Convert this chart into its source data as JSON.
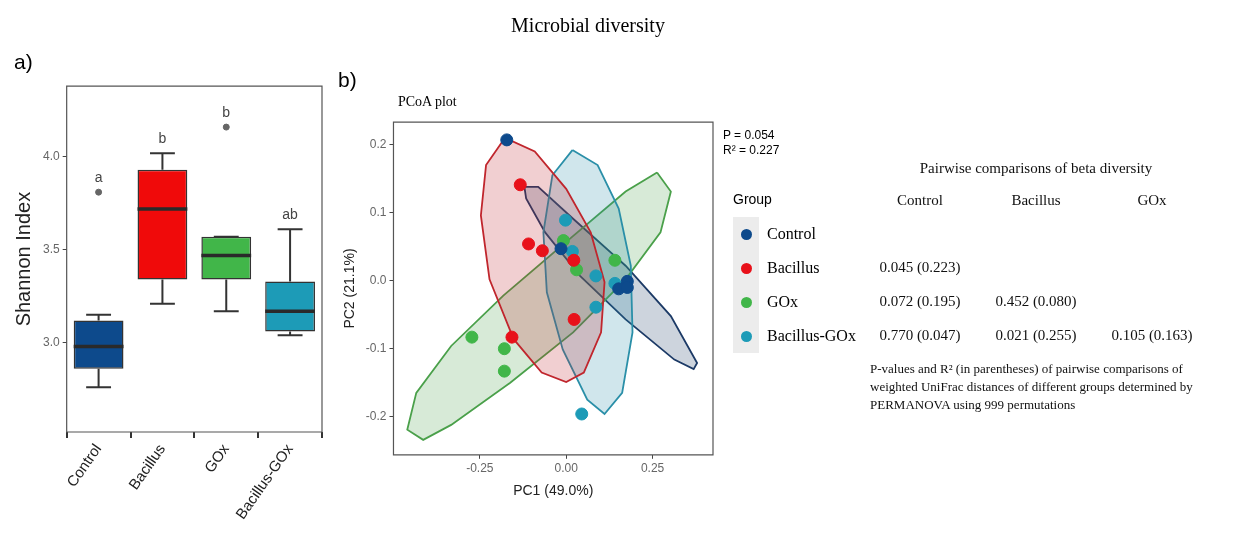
{
  "chart_data": [
    {
      "type": "box",
      "ylabel": "Shannon Index",
      "categories": [
        "Control",
        "Bacillus",
        "GOx",
        "Bacillus-GOx"
      ],
      "colors": [
        "#0d4a8c",
        "#f00a0a",
        "#41b649",
        "#1d9bb7"
      ],
      "boxes": [
        {
          "low": 2.76,
          "q1": 2.86,
          "median": 2.98,
          "q3": 3.12,
          "high": 3.15,
          "outliers": [
            3.81
          ]
        },
        {
          "low": 3.21,
          "q1": 3.34,
          "median": 3.72,
          "q3": 3.93,
          "high": 4.02
        },
        {
          "low": 3.17,
          "q1": 3.34,
          "median": 3.47,
          "q3": 3.57,
          "high": 3.57,
          "outliers": [
            4.16
          ]
        },
        {
          "low": 3.04,
          "q1": 3.06,
          "median": 3.17,
          "q3": 3.33,
          "high": 3.61
        }
      ],
      "ylim": [
        2.52,
        4.38
      ],
      "yticks": [
        {
          "value": 3,
          "label": "3.0"
        },
        3.5,
        {
          "value": 4,
          "label": "4.0"
        }
      ],
      "annotations": [
        "a)",
        "a",
        "b",
        "b",
        "ab"
      ]
    },
    {
      "type": "scatter",
      "title": "PCoA plot",
      "xlabel": "PC1 (49.0%)",
      "ylabel": "PC2 (21.1%)",
      "xlim": [
        -0.5,
        0.425
      ],
      "ylim": [
        -0.256,
        0.233
      ],
      "xticks": [
        -0.25,
        {
          "value": 0,
          "label": "0.00"
        },
        0.25
      ],
      "yticks": [
        -0.2,
        -0.1,
        {
          "value": 0,
          "label": "0.0"
        },
        0.1,
        0.2
      ],
      "marker": "circle",
      "legend": "right",
      "legend_title": "Group",
      "annotations": [
        "Microbial diversity",
        "b)",
        "P = 0.054",
        "R² = 0.227"
      ],
      "series": [
        {
          "type": "area",
          "marker": "none",
          "color": "#c0262d",
          "x": [
            -0.177,
            -0.091,
            0,
            0.071,
            0.111,
            0.101,
            0.051,
            0,
            -0.071,
            -0.152,
            -0.222,
            -0.247,
            -0.232,
            -0.177
          ],
          "values": [
            0.21,
            0.19,
            0.135,
            0.071,
            -0.002,
            -0.076,
            -0.135,
            -0.149,
            -0.135,
            -0.086,
            0.002,
            0.096,
            0.17,
            0.21
          ]
        },
        {
          "type": "area",
          "marker": "none",
          "color": "#2a8fa8",
          "x": [
            0.018,
            0.091,
            0.152,
            0.187,
            0.192,
            0.162,
            0.111,
            0.061,
            -0.01,
            -0.056,
            -0.066,
            -0.04,
            0.018
          ],
          "values": [
            0.192,
            0.17,
            0.106,
            0.022,
            -0.076,
            -0.165,
            -0.196,
            -0.175,
            -0.101,
            -0.017,
            0.071,
            0.155,
            0.192
          ]
        },
        {
          "type": "area",
          "marker": "none",
          "color": "#4aa04a",
          "x": [
            0.263,
            0.303,
            0.273,
            0.172,
            0.02,
            -0.162,
            -0.333,
            -0.414,
            -0.46,
            -0.434,
            -0.333,
            -0.182,
            0,
            0.172,
            0.263
          ],
          "values": [
            0.159,
            0.131,
            0.071,
            0.002,
            -0.076,
            -0.15,
            -0.212,
            -0.234,
            -0.219,
            -0.165,
            -0.096,
            -0.022,
            0.057,
            0.131,
            0.159
          ]
        },
        {
          "type": "area",
          "marker": "none",
          "color": "#1c3a66",
          "x": [
            -0.121,
            -0.081,
            0.02,
            0.172,
            0.303,
            0.379,
            0.369,
            0.313,
            0.172,
            0.04,
            -0.061,
            -0.116,
            -0.121
          ],
          "values": [
            0.138,
            0.138,
            0.091,
            0.022,
            -0.052,
            -0.121,
            -0.13,
            -0.116,
            -0.057,
            0.007,
            0.071,
            0.121,
            0.138
          ]
        },
        {
          "name": "Control",
          "color": "#0d4a8c",
          "x": [
            -0.172,
            -0.015,
            0.177,
            0.152,
            0.177
          ],
          "values": [
            0.207,
            0.047,
            -0.001,
            -0.012,
            -0.01
          ]
        },
        {
          "name": "Bacillus",
          "color": "#e8111a",
          "x": [
            -0.133,
            -0.109,
            -0.069,
            0.022,
            0.023,
            -0.157
          ],
          "values": [
            0.141,
            0.054,
            0.044,
            0.03,
            -0.057,
            -0.083
          ]
        },
        {
          "name": "GOx",
          "color": "#41b649",
          "x": [
            -0.008,
            0.03,
            0.141,
            -0.273,
            -0.179,
            -0.179
          ],
          "values": [
            0.059,
            0.016,
            0.03,
            -0.083,
            -0.1,
            -0.133
          ]
        },
        {
          "name": "Bacillus-GOx",
          "color": "#1d9bb7",
          "x": [
            -0.002,
            0.018,
            0.086,
            0.141,
            0.086,
            0.045
          ],
          "values": [
            0.089,
            0.043,
            0.007,
            -0.004,
            -0.039,
            -0.196
          ]
        }
      ]
    },
    {
      "type": "other",
      "title": "Pairwise comparisons of beta diversity",
      "categories": [
        "Control",
        "Bacillus",
        "GOx"
      ],
      "cell_labels": [
        [
          null,
          null,
          null
        ],
        [
          "0.045 (0.223)",
          null,
          null
        ],
        [
          "0.072 (0.195)",
          "0.452 (0.080)",
          null
        ],
        [
          "0.770 (0.047)",
          "0.021 (0.255)",
          "0.105 (0.163)"
        ]
      ],
      "annotations": [
        "P-values and R² (in parentheses) of pairwise comparisons of weighted UniFrac distances of different groups determined by PERMANOVA using 999 permutations"
      ]
    }
  ]
}
